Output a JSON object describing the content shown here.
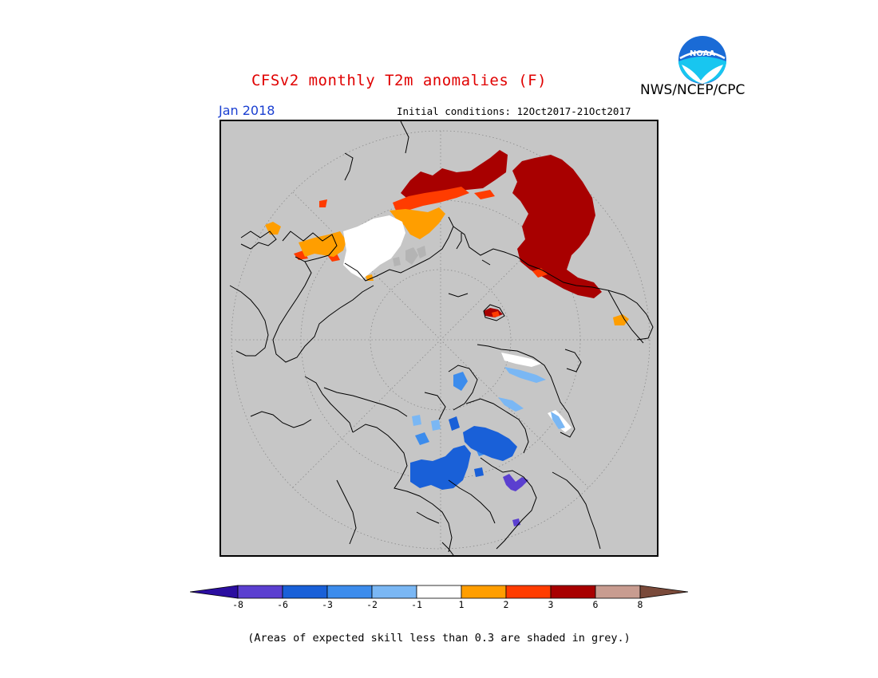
{
  "title": "CFSv2 monthly T2m anomalies (F)",
  "credit": "NWS/NCEP/CPC",
  "logo_text": "NOAA",
  "valid_month": "Jan 2018",
  "initial_conditions": "Initial conditions: 12Oct2017-21Oct2017",
  "footnote": "(Areas of expected skill less than 0.3 are shaded in grey.)",
  "colors": {
    "title": "#e00000",
    "month": "#1a3fd1",
    "map_background": "#c6c6c6",
    "below_8": "#2b0ea0",
    "m8_m6": "#5b3fd0",
    "m6_m3": "#1960d8",
    "m3_m2": "#3c8cec",
    "m2_m1": "#7ab7f4",
    "m1_p1": "#ffffff",
    "p1_p2": "#ff9e00",
    "p2_p3": "#ff3c00",
    "p3_p6": "#a80000",
    "p6_p8": "#c89c90",
    "above_8": "#7a4a3a"
  },
  "legend": {
    "tick_labels": [
      "-8",
      "-6",
      "-3",
      "-2",
      "-1",
      "1",
      "2",
      "3",
      "6",
      "8"
    ]
  }
}
